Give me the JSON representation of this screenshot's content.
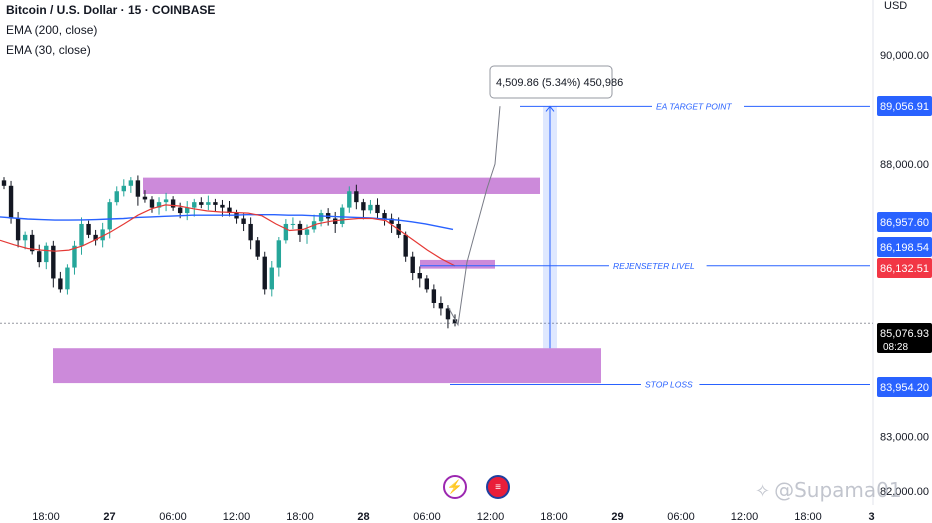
{
  "header": {
    "symbol_line": "Bitcoin / U.S. Dollar · 15 · COINBASE",
    "indicator_1": "EMA (200, close)",
    "indicator_2": "EMA (30, close)",
    "currency": "USD"
  },
  "watermark": {
    "text": "@Supama01"
  },
  "events": {
    "lightning_icon": "lightning-icon",
    "flag_icon": "us-flag-icon"
  },
  "chart_data": {
    "type": "candlestick",
    "instrument": "Bitcoin / U.S. Dollar",
    "timeframe": "15",
    "exchange": "COINBASE",
    "currency": "USD",
    "ylim": [
      82000,
      91000
    ],
    "yticks": [
      {
        "value": 90000,
        "label": "90,000.00"
      },
      {
        "value": 88000,
        "label": "88,000.00"
      },
      {
        "value": 83000,
        "label": "83,000.00"
      },
      {
        "value": 82000,
        "label": "82,000.00"
      }
    ],
    "xticks": [
      "18:00",
      "27",
      "06:00",
      "12:00",
      "18:00",
      "28",
      "06:00",
      "12:00",
      "18:00",
      "29",
      "06:00",
      "12:00",
      "18:00",
      "3"
    ],
    "price_tags": [
      {
        "value": 89056.91,
        "label": "89,056.91",
        "color": "#2962ff"
      },
      {
        "value": 86957.6,
        "label": "86,957.60",
        "color": "#2962ff"
      },
      {
        "value": 86198.54,
        "label": "86,198.54",
        "color": "#2962ff"
      },
      {
        "value": 86132.51,
        "label": "86,132.51",
        "color": "#f23645"
      },
      {
        "value": 85076.93,
        "label": "85,076.93",
        "sub": "08:28",
        "color": "#000000"
      },
      {
        "value": 83954.2,
        "label": "83,954.20",
        "color": "#2962ff"
      }
    ],
    "annotations": [
      {
        "text": "EA TARGET POINT",
        "value": 89056.91
      },
      {
        "text": "REJENSETER LIVEL",
        "value": 86132.51
      },
      {
        "text": "STOP LOSS",
        "value": 83954.2
      }
    ],
    "measure_label": "4,509.86 (5.34%) 450,986",
    "zones": [
      {
        "name": "resistance-zone",
        "y_top": 87750,
        "y_bottom": 87450,
        "color": "#c77dd6"
      },
      {
        "name": "rejection-zone",
        "y_top": 86240,
        "y_bottom": 86080,
        "color": "#c77dd6"
      },
      {
        "name": "demand-zone",
        "y_top": 84620,
        "y_bottom": 83980,
        "color": "#c77dd6"
      }
    ],
    "projection_path": [
      85380,
      85050,
      86200,
      87550,
      88000,
      89060
    ],
    "ema_200": [
      87030,
      87010,
      86990,
      86980,
      86970,
      86970,
      86975,
      86980,
      86990,
      87000,
      87020,
      87030,
      87040,
      87050,
      87060,
      87060,
      87060,
      87060,
      87070,
      87070,
      87070,
      87060,
      87060,
      87050,
      87040,
      87030,
      87020,
      87010,
      86990,
      86970,
      86940,
      86900,
      86850,
      86800
    ],
    "ema_30": [
      86600,
      86520,
      86450,
      86420,
      86400,
      86420,
      86500,
      86620,
      86750,
      86900,
      87060,
      87180,
      87250,
      87230,
      87180,
      87140,
      87120,
      87110,
      87100,
      87050,
      86900,
      86780,
      86800,
      86900,
      86950,
      86980,
      87000,
      87000,
      86960,
      86780,
      86600,
      86420,
      86260,
      86130
    ],
    "candles_close": [
      87600,
      87000,
      86600,
      86700,
      86400,
      86200,
      86500,
      85900,
      85700,
      86100,
      86500,
      86900,
      86700,
      86600,
      86800,
      87300,
      87500,
      87600,
      87700,
      87400,
      87350,
      87200,
      87300,
      87350,
      87200,
      87100,
      87200,
      87300,
      87250,
      87300,
      87250,
      87200,
      87100,
      87000,
      86900,
      86600,
      86300,
      85700,
      86100,
      86600,
      86900,
      86900,
      86700,
      86800,
      86950,
      87100,
      87000,
      86900,
      87200,
      87500,
      87300,
      87150,
      87250,
      87100,
      87000,
      86900,
      86700,
      86300,
      86000,
      85900,
      85700,
      85450,
      85350,
      85150,
      85080
    ]
  }
}
